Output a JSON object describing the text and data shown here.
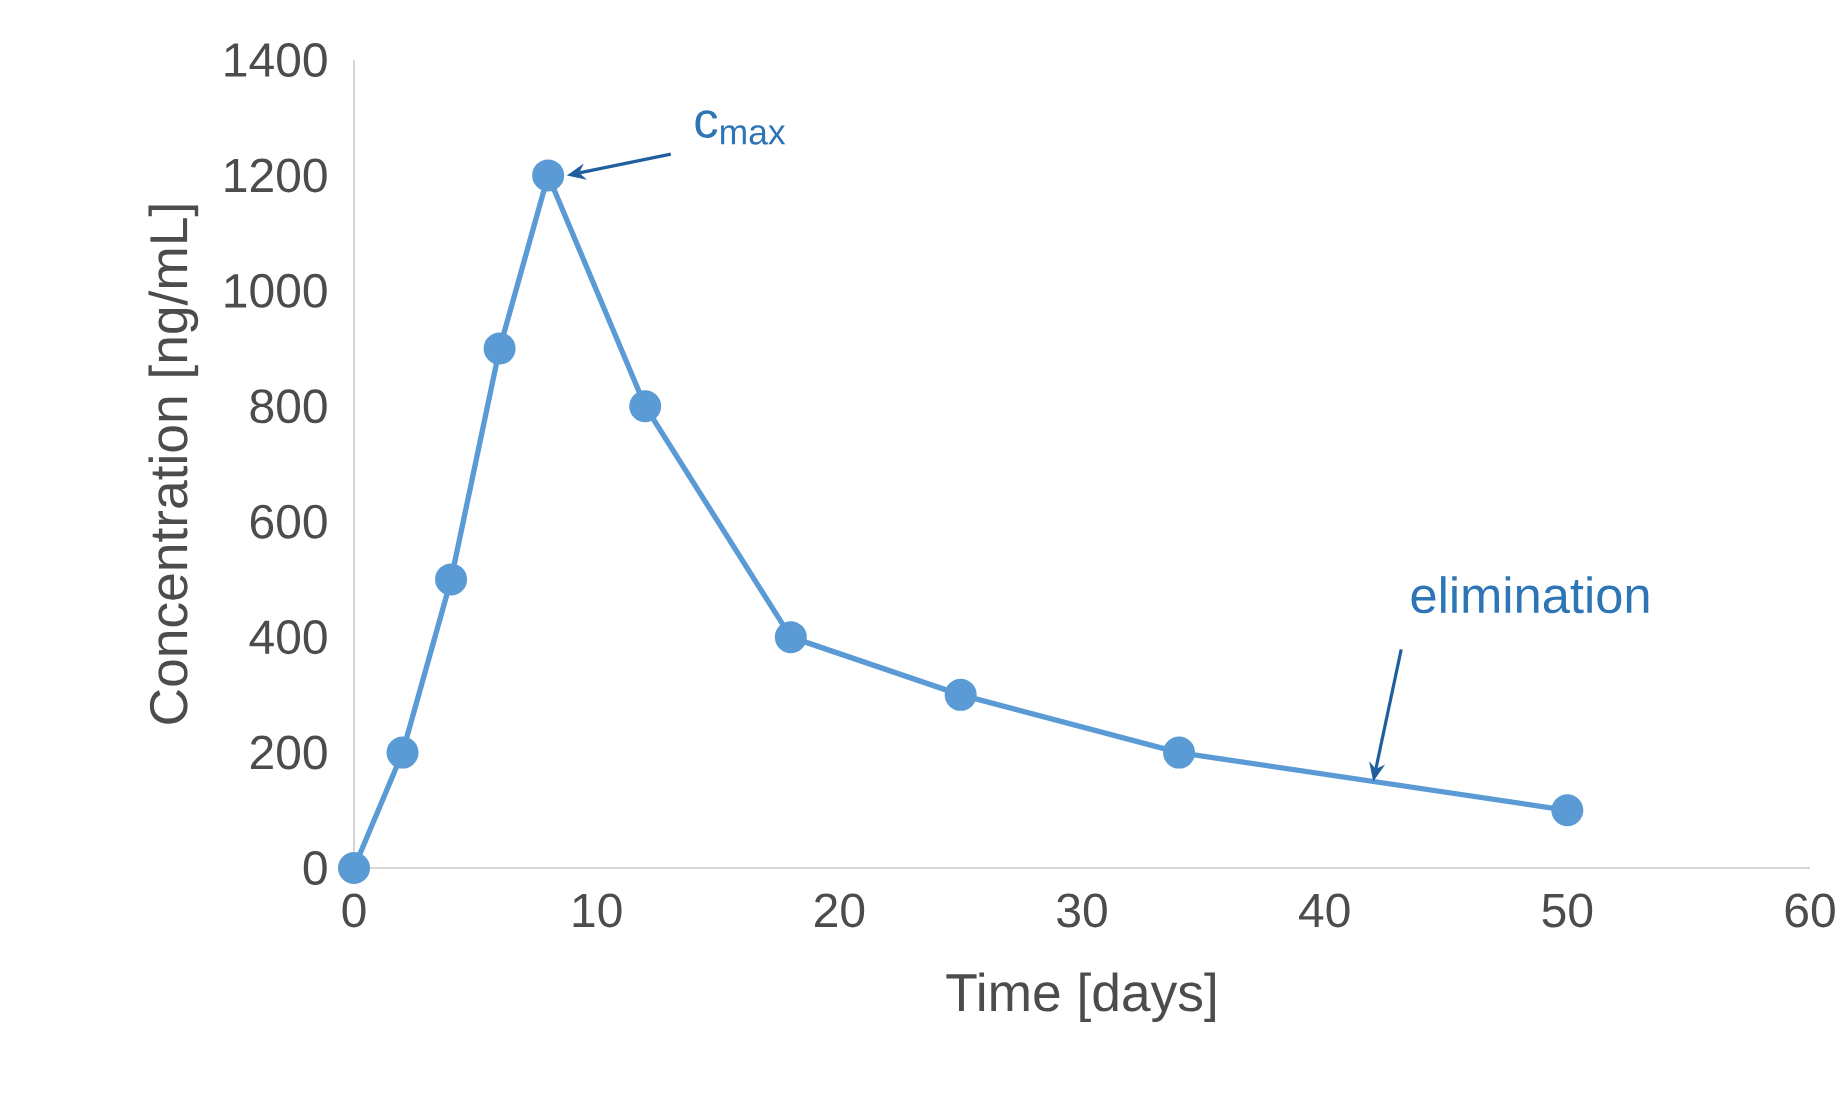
{
  "chart_data": {
    "type": "line",
    "xlabel": "Time [days]",
    "ylabel": "Concentration [ng/mL]",
    "x": [
      0,
      2,
      4,
      6,
      8,
      12,
      18,
      25,
      34,
      50
    ],
    "values": [
      0,
      200,
      500,
      900,
      1200,
      800,
      400,
      300,
      200,
      100
    ],
    "color": "#5b9bd5",
    "marker": "circle",
    "grid": false,
    "xlim": [
      0,
      60
    ],
    "ylim": [
      0,
      1400
    ],
    "xticks": [
      0,
      10,
      20,
      30,
      40,
      50,
      60
    ],
    "yticks": [
      0,
      200,
      400,
      600,
      800,
      1000,
      1200,
      1400
    ],
    "annotations": [
      {
        "text": "c$_{max}$",
        "x": 8,
        "y": 1200
      },
      {
        "text": "elimination",
        "x": 42,
        "y": 150
      }
    ]
  }
}
